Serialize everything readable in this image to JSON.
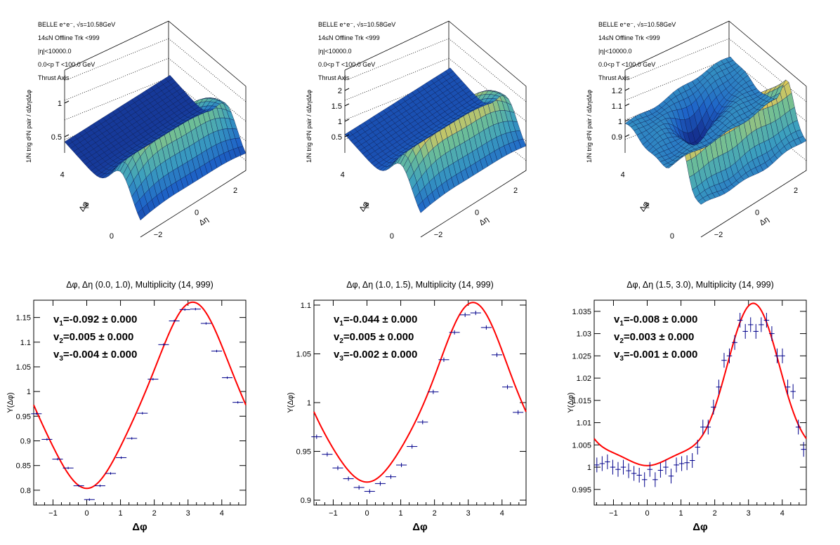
{
  "surface_panels": [
    {
      "info": [
        "BELLE e⁺e⁻, √s=10.58GeV",
        "14≤N Offline Trk <999",
        "|η|<10000.0",
        "0.0<p T <100.0 GeV",
        "Thrust Axis"
      ],
      "zlabel": "1/N trig d²N pair / dΔηdΔφ",
      "zticks": [
        "0.5",
        "1"
      ],
      "phi_ticks": [
        "0",
        "2",
        "4"
      ],
      "eta_ticks": [
        "−2",
        "0",
        "2"
      ],
      "phi_label": "Δφ",
      "eta_label": "Δη",
      "style": "ridge"
    },
    {
      "info": [
        "BELLE e⁺e⁻, √s=10.58GeV",
        "14≤N Offline Trk <999",
        "|η|<10000.0",
        "0.0<p T <100.0 GeV",
        "Thrust Axis"
      ],
      "zlabel": "1/N trig d²N pair / dΔηdΔφ",
      "zticks": [
        "0.5",
        "1",
        "1.5",
        "2"
      ],
      "phi_ticks": [
        "0",
        "2",
        "4"
      ],
      "eta_ticks": [
        "−2",
        "0",
        "2"
      ],
      "phi_label": "Δφ",
      "eta_label": "Δη",
      "style": "ridge2"
    },
    {
      "info": [
        "BELLE e⁺e⁻, √s=10.58GeV",
        "14≤N Offline Trk <999",
        "|η|<10000.0",
        "0.0<p T <100.0 GeV",
        "Thrust Axis"
      ],
      "zlabel": "1/N trig d²N pair / dΔηdΔφ",
      "zticks": [
        "0.9",
        "1",
        "1.1",
        "1.2"
      ],
      "phi_ticks": [
        "0",
        "2",
        "4"
      ],
      "eta_ticks": [
        "−2",
        "0",
        "2"
      ],
      "phi_label": "Δφ",
      "eta_label": "Δη",
      "style": "flat"
    }
  ],
  "chart_data": [
    {
      "type": "scatter",
      "title": "Δφ, Δη (0.0, 1.0), Multiplicity (14, 999)",
      "xlabel": "Δφ",
      "ylabel": "Y(Δφ)",
      "xlim": [
        -1.571,
        4.712
      ],
      "ylim": [
        0.77,
        1.185
      ],
      "xticks": [
        -1,
        0,
        1,
        2,
        3,
        4
      ],
      "yticks": [
        0.8,
        0.85,
        0.9,
        0.95,
        1,
        1.05,
        1.1,
        1.15
      ],
      "ytick_labels": [
        "0.8",
        "0.85",
        "0.9",
        "0.95",
        "1",
        "1.05",
        "1.1",
        "1.15"
      ],
      "fit": {
        "a0": 0.9825,
        "v1": -0.092,
        "v2": 0.005,
        "v3": -0.004,
        "color": "#ff0000"
      },
      "points_color": "#00008b",
      "x": [
        -1.492,
        -1.178,
        -0.864,
        -0.55,
        -0.236,
        0.079,
        0.393,
        0.707,
        1.021,
        1.335,
        1.649,
        1.963,
        2.277,
        2.592,
        2.906,
        3.22,
        3.534,
        3.848,
        4.162,
        4.476
      ],
      "y": [
        0.955,
        0.903,
        0.863,
        0.845,
        0.809,
        0.781,
        0.809,
        0.834,
        0.866,
        0.905,
        0.956,
        1.025,
        1.095,
        1.143,
        1.166,
        1.167,
        1.138,
        1.082,
        1.028,
        0.978
      ],
      "yerr": [
        0.001,
        0.001,
        0.001,
        0.001,
        0.001,
        0.001,
        0.001,
        0.001,
        0.001,
        0.001,
        0.001,
        0.001,
        0.001,
        0.001,
        0.001,
        0.001,
        0.001,
        0.001,
        0.001,
        0.001
      ],
      "annotations": [
        {
          "label": "v",
          "sub": "1",
          "text": "=-0.092 ± 0.000"
        },
        {
          "label": "v",
          "sub": "2",
          "text": "=0.005 ± 0.000"
        },
        {
          "label": "v",
          "sub": "3",
          "text": "=-0.004 ± 0.000"
        }
      ]
    },
    {
      "type": "scatter",
      "title": "Δφ, Δη (1.0, 1.5), Multiplicity (14, 999)",
      "xlabel": "Δφ",
      "ylabel": "Y(Δφ)",
      "xlim": [
        -1.571,
        4.712
      ],
      "ylim": [
        0.895,
        1.105
      ],
      "xticks": [
        -1,
        0,
        1,
        2,
        3,
        4
      ],
      "yticks": [
        0.9,
        0.95,
        1,
        1.05,
        1.1
      ],
      "ytick_labels": [
        "0.9",
        "0.95",
        "1",
        "1.05",
        "1.1"
      ],
      "fit": {
        "a0": 1.0006,
        "v1": -0.044,
        "v2": 0.005,
        "v3": -0.002,
        "color": "#ff0000"
      },
      "points_color": "#00008b",
      "x": [
        -1.492,
        -1.178,
        -0.864,
        -0.55,
        -0.236,
        0.079,
        0.393,
        0.707,
        1.021,
        1.335,
        1.649,
        1.963,
        2.277,
        2.592,
        2.906,
        3.22,
        3.534,
        3.848,
        4.162,
        4.476
      ],
      "y": [
        0.965,
        0.947,
        0.933,
        0.922,
        0.913,
        0.909,
        0.917,
        0.924,
        0.936,
        0.955,
        0.98,
        1.011,
        1.044,
        1.072,
        1.09,
        1.092,
        1.077,
        1.049,
        1.016,
        0.99
      ],
      "yerr": [
        0.0015,
        0.0015,
        0.0015,
        0.0015,
        0.0015,
        0.0015,
        0.0015,
        0.0015,
        0.0015,
        0.0015,
        0.0015,
        0.0015,
        0.0015,
        0.0015,
        0.0015,
        0.0015,
        0.0015,
        0.0015,
        0.0015,
        0.0015
      ],
      "annotations": [
        {
          "label": "v",
          "sub": "1",
          "text": "=-0.044 ± 0.000"
        },
        {
          "label": "v",
          "sub": "2",
          "text": "=0.005 ± 0.000"
        },
        {
          "label": "v",
          "sub": "3",
          "text": "=-0.002 ± 0.000"
        }
      ]
    },
    {
      "type": "scatter",
      "title": "Δφ, Δη (1.5, 3.0), Multiplicity (14, 999)",
      "xlabel": "Δφ",
      "ylabel": "Y(Δφ)",
      "xlim": [
        -1.571,
        4.712
      ],
      "ylim": [
        0.9915,
        1.0375
      ],
      "xticks": [
        -1,
        0,
        1,
        2,
        3,
        4
      ],
      "yticks": [
        0.995,
        1,
        1.005,
        1.01,
        1.015,
        1.02,
        1.025,
        1.03,
        1.035
      ],
      "ytick_labels": [
        "0.995",
        "1",
        "1.005",
        "1.01",
        "1.015",
        "1.02",
        "1.025",
        "1.03",
        "1.035"
      ],
      "fit": {
        "a0": 1.0125,
        "v1": -0.008,
        "v2": 0.003,
        "v3": -0.001,
        "color": "#ff0000"
      },
      "points_color": "#00008b",
      "x": [
        -1.492,
        -1.335,
        -1.178,
        -1.021,
        -0.864,
        -0.707,
        -0.55,
        -0.393,
        -0.236,
        -0.079,
        0.079,
        0.236,
        0.393,
        0.55,
        0.707,
        0.864,
        1.021,
        1.178,
        1.335,
        1.492,
        1.649,
        1.806,
        1.963,
        2.12,
        2.277,
        2.434,
        2.592,
        2.749,
        2.906,
        3.063,
        3.22,
        3.377,
        3.534,
        3.691,
        3.848,
        4.005,
        4.162,
        4.32,
        4.476,
        4.633
      ],
      "y": [
        1.0005,
        1.0008,
        1.0012,
        1.0,
        0.9995,
        1.0,
        0.9992,
        0.9986,
        0.9982,
        0.9972,
        0.9995,
        0.9972,
        0.9993,
        1.0,
        0.998,
        1.0005,
        1.0008,
        1.001,
        1.0015,
        1.0045,
        1.009,
        1.009,
        1.0135,
        1.018,
        1.024,
        1.025,
        1.028,
        1.033,
        1.0305,
        1.032,
        1.0305,
        1.032,
        1.033,
        1.03,
        1.025,
        1.025,
        1.018,
        1.017,
        1.009,
        1.004
      ],
      "yerr": [
        0.0015,
        0.0015,
        0.0015,
        0.0015,
        0.0015,
        0.0015,
        0.0015,
        0.0015,
        0.0015,
        0.0015,
        0.0015,
        0.0015,
        0.0015,
        0.0015,
        0.0015,
        0.0015,
        0.0015,
        0.0015,
        0.0015,
        0.0015,
        0.0015,
        0.0015,
        0.0015,
        0.0015,
        0.0015,
        0.0015,
        0.0015,
        0.0015,
        0.0015,
        0.0015,
        0.0015,
        0.0015,
        0.0015,
        0.0015,
        0.0015,
        0.0015,
        0.0015,
        0.0015,
        0.0015,
        0.0015
      ],
      "annotations": [
        {
          "label": "v",
          "sub": "1",
          "text": "=-0.008 ± 0.000"
        },
        {
          "label": "v",
          "sub": "2",
          "text": "=0.003 ± 0.000"
        },
        {
          "label": "v",
          "sub": "3",
          "text": "=-0.001 ± 0.000"
        }
      ]
    }
  ]
}
